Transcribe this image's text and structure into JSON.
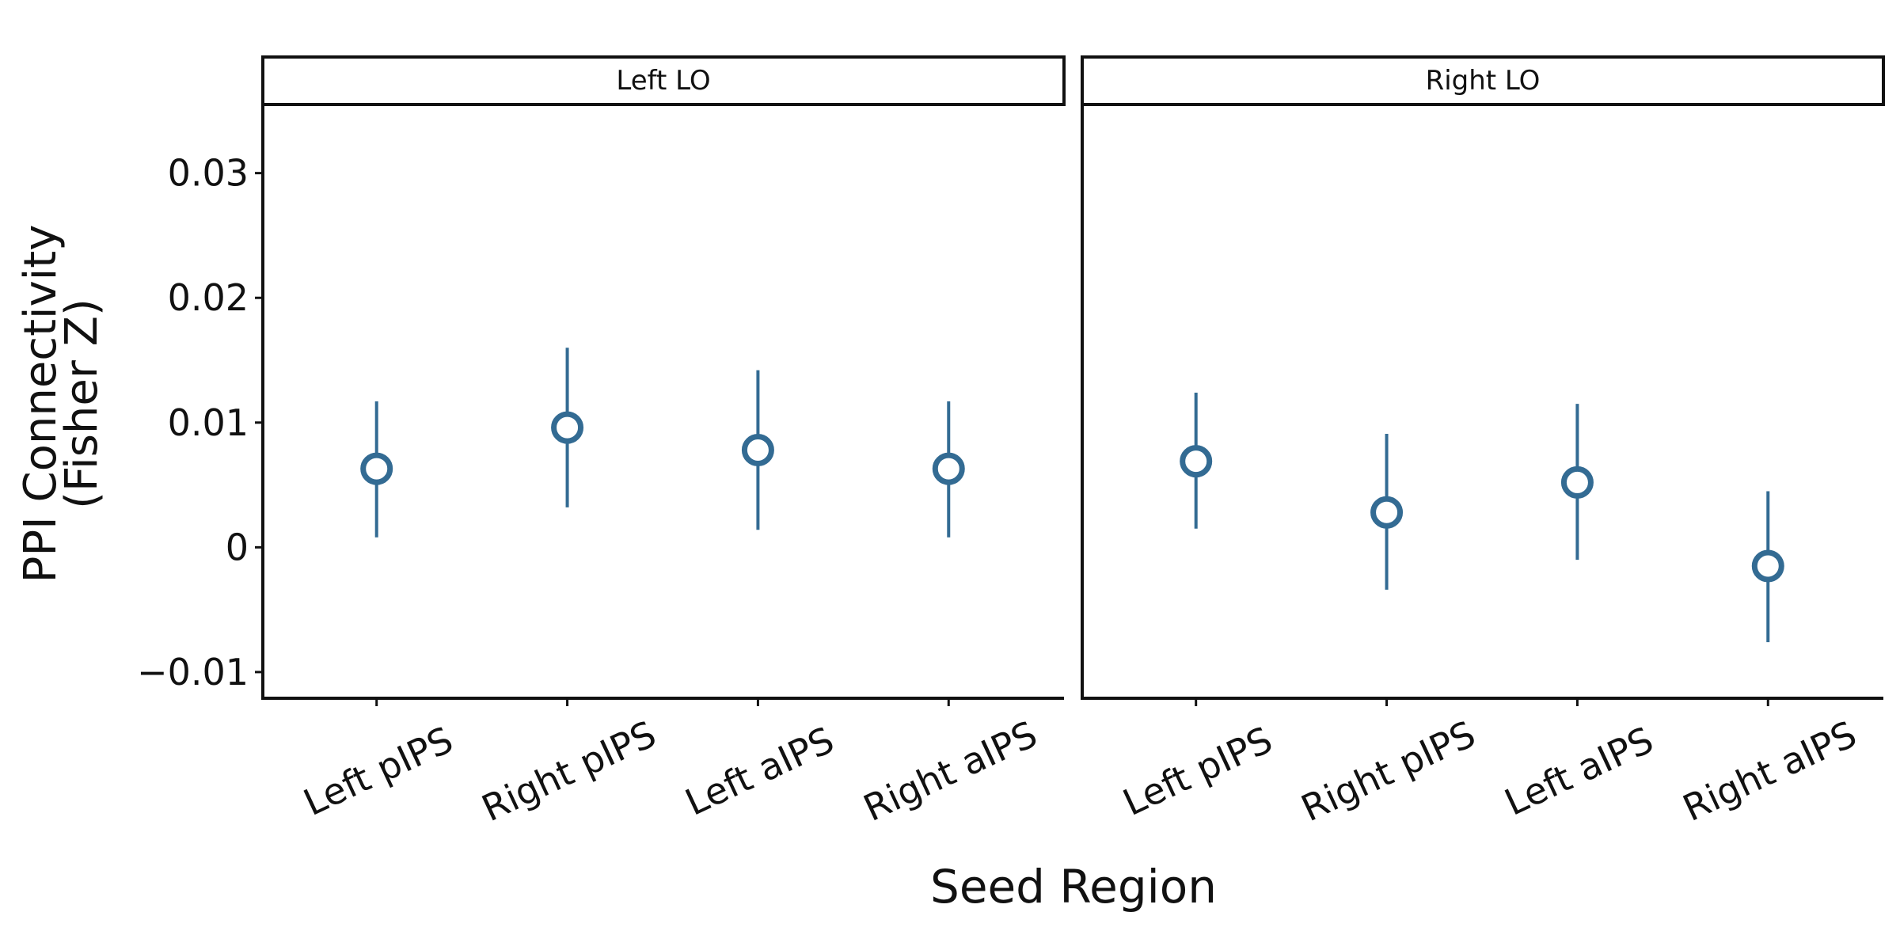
{
  "chart_data": {
    "type": "scatter",
    "subtype": "pointrange",
    "xlabel": "Seed Region",
    "ylabel_lines": [
      "PPI Connectivity",
      "(Fisher Z)"
    ],
    "ylim": [
      -0.0121,
      0.0355
    ],
    "yticks": [
      -0.01,
      0,
      0.01,
      0.02,
      0.03
    ],
    "ytick_labels": [
      "−0.01",
      "0",
      "0.01",
      "0.02",
      "0.03"
    ],
    "categories": [
      "Left pIPS",
      "Right pIPS",
      "Left aIPS",
      "Right aIPS"
    ],
    "point_color": "#336b93",
    "grid": false,
    "panels": [
      {
        "title": "Left LO",
        "points": [
          {
            "x": "Left pIPS",
            "y": 0.0063,
            "lower": 0.0008,
            "upper": 0.0117
          },
          {
            "x": "Right pIPS",
            "y": 0.0096,
            "lower": 0.0032,
            "upper": 0.016
          },
          {
            "x": "Left aIPS",
            "y": 0.0078,
            "lower": 0.0014,
            "upper": 0.0142
          },
          {
            "x": "Right aIPS",
            "y": 0.0063,
            "lower": 0.0008,
            "upper": 0.0117
          }
        ]
      },
      {
        "title": "Right LO",
        "points": [
          {
            "x": "Left pIPS",
            "y": 0.0069,
            "lower": 0.0015,
            "upper": 0.0124
          },
          {
            "x": "Right pIPS",
            "y": 0.0028,
            "lower": -0.0034,
            "upper": 0.0091
          },
          {
            "x": "Left aIPS",
            "y": 0.0052,
            "lower": -0.001,
            "upper": 0.0115
          },
          {
            "x": "Right aIPS",
            "y": -0.0015,
            "lower": -0.0076,
            "upper": 0.0045
          }
        ]
      }
    ]
  }
}
